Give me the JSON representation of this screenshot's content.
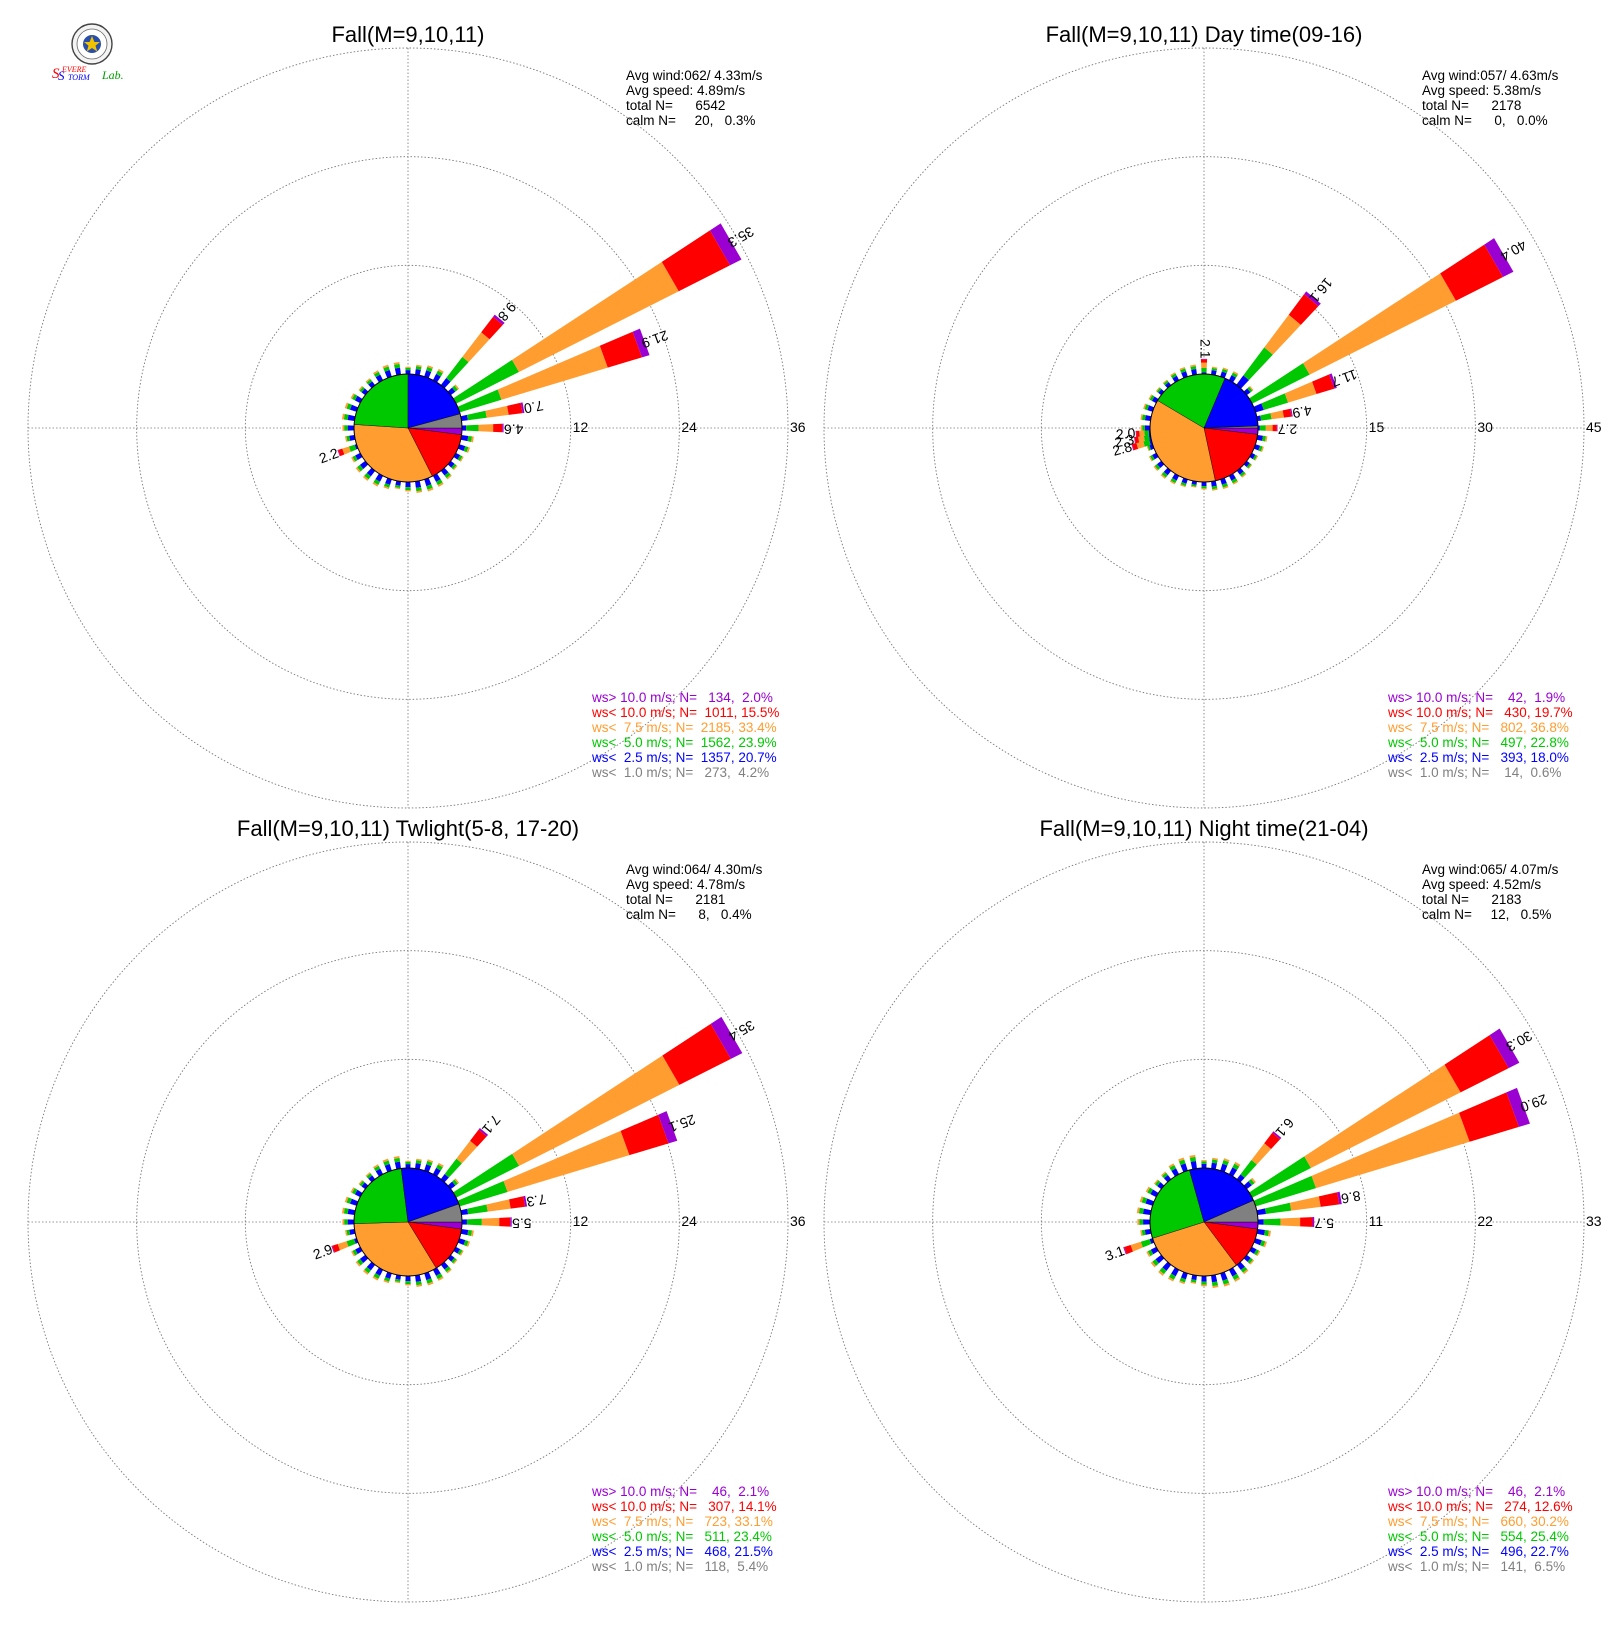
{
  "logo": {
    "text_s1": "S",
    "text_evere": "EVERE",
    "text_s2": "S",
    "text_torm": "TORM",
    "text_lab": "Lab."
  },
  "colors": {
    "purple": "#9b00d3",
    "red": "#ff0000",
    "orange": "#ff9d30",
    "green": "#00c800",
    "blue": "#0000ff",
    "gray": "#808080",
    "grid": "#777777",
    "text": "#000000"
  },
  "chart_data": [
    {
      "type": "wind-rose",
      "title": "Fall(M=9,10,11)",
      "stats": [
        "Avg wind:062/ 4.33m/s",
        "Avg speed: 4.89m/s",
        "total N=      6542",
        "calm N=     20,   0.3%"
      ],
      "radial_ticks": [
        12,
        24,
        36
      ],
      "r_max": 36,
      "directions_deg": [
        0,
        10,
        20,
        30,
        40,
        50,
        60,
        70,
        80,
        90,
        100,
        110,
        120,
        130,
        140,
        150,
        160,
        170,
        180,
        190,
        200,
        210,
        220,
        230,
        240,
        250,
        260,
        270,
        280,
        290,
        300,
        310,
        320,
        330,
        340,
        350
      ],
      "petals": [
        {
          "dir": 40,
          "total": 9.8,
          "label": "9.8"
        },
        {
          "dir": 60,
          "total": 35.3,
          "label": "35.3"
        },
        {
          "dir": 70,
          "total": 21.9,
          "label": "21.9"
        },
        {
          "dir": 80,
          "total": 7.0,
          "label": "7.0"
        },
        {
          "dir": 90,
          "total": 4.6,
          "label": "4.6"
        },
        {
          "dir": 250,
          "total": 2.2,
          "label": "2.2"
        }
      ],
      "speed_shares_pct": {
        "gray": 4.2,
        "blue": 20.7,
        "green": 23.9,
        "orange": 33.4,
        "red": 15.5,
        "purple": 2.0
      },
      "legend": [
        {
          "label": "ws> 10.0 m/s; N=   134,  2.0%",
          "color": "purple"
        },
        {
          "label": "ws< 10.0 m/s; N=  1011, 15.5%",
          "color": "red"
        },
        {
          "label": "ws<  7.5 m/s; N=  2185, 33.4%",
          "color": "orange"
        },
        {
          "label": "ws<  5.0 m/s; N=  1562, 23.9%",
          "color": "green"
        },
        {
          "label": "ws<  2.5 m/s; N=  1357, 20.7%",
          "color": "blue"
        },
        {
          "label": "ws<  1.0 m/s; N=   273,  4.2%",
          "color": "gray"
        }
      ]
    },
    {
      "type": "wind-rose",
      "title": "Fall(M=9,10,11) Day time(09-16)",
      "stats": [
        "Avg wind:057/ 4.63m/s",
        "Avg speed: 5.38m/s",
        "total N=      2178",
        "calm N=      0,   0.0%"
      ],
      "radial_ticks": [
        15,
        30,
        45
      ],
      "r_max": 45,
      "directions_deg": [
        0,
        10,
        20,
        30,
        40,
        50,
        60,
        70,
        80,
        90,
        100,
        110,
        120,
        130,
        140,
        150,
        160,
        170,
        180,
        190,
        200,
        210,
        220,
        230,
        240,
        250,
        260,
        270,
        280,
        290,
        300,
        310,
        320,
        330,
        340,
        350
      ],
      "petals": [
        {
          "dir": 0,
          "total": 2.1,
          "label": "2.1"
        },
        {
          "dir": 40,
          "total": 16.1,
          "label": "16.1"
        },
        {
          "dir": 60,
          "total": 40.4,
          "label": "40.4"
        },
        {
          "dir": 70,
          "total": 11.7,
          "label": "11.7"
        },
        {
          "dir": 80,
          "total": 4.9,
          "label": "4.9"
        },
        {
          "dir": 90,
          "total": 2.7,
          "label": "2.7"
        },
        {
          "dir": 255,
          "total": 2.8,
          "label": "2.8"
        },
        {
          "dir": 260,
          "total": 2.3,
          "label": "2.3"
        },
        {
          "dir": 265,
          "total": 2.0,
          "label": "2.0"
        }
      ],
      "speed_shares_pct": {
        "gray": 0.6,
        "blue": 18.0,
        "green": 22.8,
        "orange": 36.8,
        "red": 19.7,
        "purple": 1.9
      },
      "legend": [
        {
          "label": "ws> 10.0 m/s; N=    42,  1.9%",
          "color": "purple"
        },
        {
          "label": "ws< 10.0 m/s; N=   430, 19.7%",
          "color": "red"
        },
        {
          "label": "ws<  7.5 m/s; N=   802, 36.8%",
          "color": "orange"
        },
        {
          "label": "ws<  5.0 m/s; N=   497, 22.8%",
          "color": "green"
        },
        {
          "label": "ws<  2.5 m/s; N=   393, 18.0%",
          "color": "blue"
        },
        {
          "label": "ws<  1.0 m/s; N=    14,  0.6%",
          "color": "gray"
        }
      ]
    },
    {
      "type": "wind-rose",
      "title": "Fall(M=9,10,11) Twlight(5-8, 17-20)",
      "stats": [
        "Avg wind:064/ 4.30m/s",
        "Avg speed: 4.78m/s",
        "total N=      2181",
        "calm N=      8,   0.4%"
      ],
      "radial_ticks": [
        12,
        24,
        36
      ],
      "r_max": 36,
      "directions_deg": [
        0,
        10,
        20,
        30,
        40,
        50,
        60,
        70,
        80,
        90,
        100,
        110,
        120,
        130,
        140,
        150,
        160,
        170,
        180,
        190,
        200,
        210,
        220,
        230,
        240,
        250,
        260,
        270,
        280,
        290,
        300,
        310,
        320,
        330,
        340,
        350
      ],
      "petals": [
        {
          "dir": 40,
          "total": 7.1,
          "label": "7.1"
        },
        {
          "dir": 60,
          "total": 35.4,
          "label": "35.4"
        },
        {
          "dir": 70,
          "total": 25.1,
          "label": "25.1"
        },
        {
          "dir": 80,
          "total": 7.3,
          "label": "7.3"
        },
        {
          "dir": 90,
          "total": 5.5,
          "label": "5.5"
        },
        {
          "dir": 250,
          "total": 2.9,
          "label": "2.9"
        }
      ],
      "speed_shares_pct": {
        "gray": 5.4,
        "blue": 21.5,
        "green": 23.4,
        "orange": 33.1,
        "red": 14.1,
        "purple": 2.1
      },
      "legend": [
        {
          "label": "ws> 10.0 m/s; N=    46,  2.1%",
          "color": "purple"
        },
        {
          "label": "ws< 10.0 m/s; N=   307, 14.1%",
          "color": "red"
        },
        {
          "label": "ws<  7.5 m/s; N=   723, 33.1%",
          "color": "orange"
        },
        {
          "label": "ws<  5.0 m/s; N=   511, 23.4%",
          "color": "green"
        },
        {
          "label": "ws<  2.5 m/s; N=   468, 21.5%",
          "color": "blue"
        },
        {
          "label": "ws<  1.0 m/s; N=   118,  5.4%",
          "color": "gray"
        }
      ]
    },
    {
      "type": "wind-rose",
      "title": "Fall(M=9,10,11) Night time(21-04)",
      "stats": [
        "Avg wind:065/ 4.07m/s",
        "Avg speed: 4.52m/s",
        "total N=      2183",
        "calm N=     12,   0.5%"
      ],
      "radial_ticks": [
        11,
        22,
        33
      ],
      "r_max": 33,
      "directions_deg": [
        0,
        10,
        20,
        30,
        40,
        50,
        60,
        70,
        80,
        90,
        100,
        110,
        120,
        130,
        140,
        150,
        160,
        170,
        180,
        190,
        200,
        210,
        220,
        230,
        240,
        250,
        260,
        270,
        280,
        290,
        300,
        310,
        320,
        330,
        340,
        350
      ],
      "petals": [
        {
          "dir": 40,
          "total": 6.1,
          "label": "6.1"
        },
        {
          "dir": 60,
          "total": 30.3,
          "label": "30.3"
        },
        {
          "dir": 70,
          "total": 29.0,
          "label": "29.0"
        },
        {
          "dir": 80,
          "total": 8.6,
          "label": "8.6"
        },
        {
          "dir": 90,
          "total": 5.7,
          "label": "5.7"
        },
        {
          "dir": 250,
          "total": 3.1,
          "label": "3.1"
        }
      ],
      "speed_shares_pct": {
        "gray": 6.5,
        "blue": 22.7,
        "green": 25.4,
        "orange": 30.2,
        "red": 12.6,
        "purple": 2.1
      },
      "legend": [
        {
          "label": "ws> 10.0 m/s; N=    46,  2.1%",
          "color": "purple"
        },
        {
          "label": "ws< 10.0 m/s; N=   274, 12.6%",
          "color": "red"
        },
        {
          "label": "ws<  7.5 m/s; N=   660, 30.2%",
          "color": "orange"
        },
        {
          "label": "ws<  5.0 m/s; N=   554, 25.4%",
          "color": "green"
        },
        {
          "label": "ws<  2.5 m/s; N=   496, 22.7%",
          "color": "blue"
        },
        {
          "label": "ws<  1.0 m/s; N=   141,  6.5%",
          "color": "gray"
        }
      ]
    }
  ]
}
